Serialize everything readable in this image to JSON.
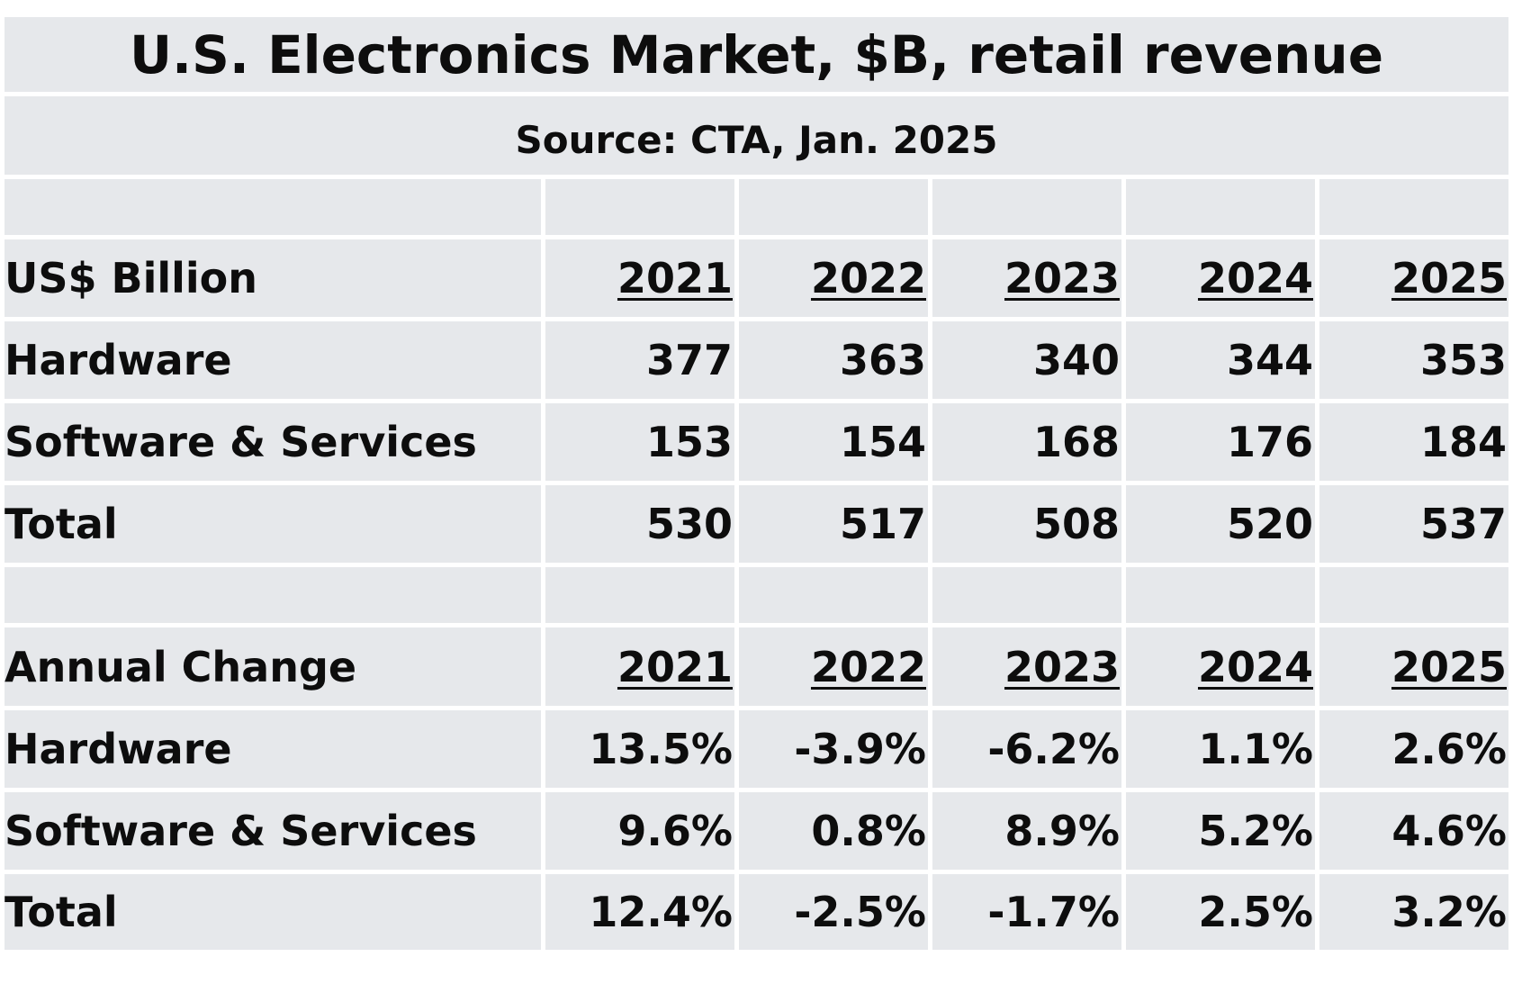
{
  "chart_data": {
    "type": "table",
    "title": "U.S. Electronics Market, $B, retail revenue",
    "subtitle": "Source: CTA, Jan. 2025",
    "sections": [
      {
        "header": "US$ Billion",
        "years": [
          "2021",
          "2022",
          "2023",
          "2024",
          "2025"
        ],
        "rows": [
          {
            "label": "Hardware",
            "values": [
              "377",
              "363",
              "340",
              "344",
              "353"
            ]
          },
          {
            "label": "Software & Services",
            "values": [
              "153",
              "154",
              "168",
              "176",
              "184"
            ]
          },
          {
            "label": "Total",
            "values": [
              "530",
              "517",
              "508",
              "520",
              "537"
            ]
          }
        ]
      },
      {
        "header": "Annual Change",
        "years": [
          "2021",
          "2022",
          "2023",
          "2024",
          "2025"
        ],
        "rows": [
          {
            "label": "Hardware",
            "values": [
              "13.5%",
              "-3.9%",
              "-6.2%",
              "1.1%",
              "2.6%"
            ]
          },
          {
            "label": "Software & Services",
            "values": [
              "9.6%",
              "0.8%",
              "8.9%",
              "5.2%",
              "4.6%"
            ]
          },
          {
            "label": "Total",
            "values": [
              "12.4%",
              "-2.5%",
              "-1.7%",
              "2.5%",
              "3.2%"
            ]
          }
        ]
      }
    ]
  }
}
